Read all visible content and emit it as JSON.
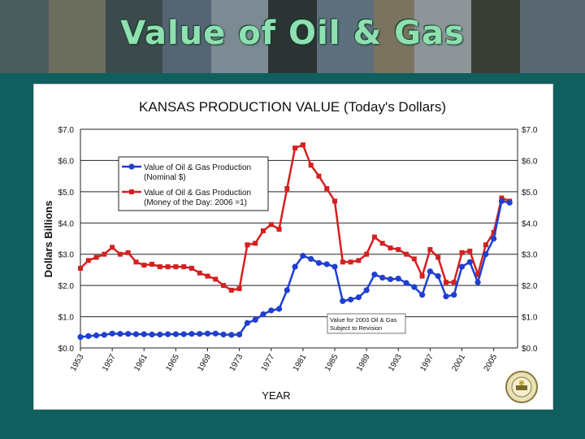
{
  "banner": {
    "title": "Value of Oil & Gas"
  },
  "chart_data": {
    "type": "line",
    "title": "KANSAS PRODUCTION VALUE (Today's Dollars)",
    "xlabel": "YEAR",
    "ylabel": "Dollars Billions",
    "xlim": [
      1953,
      2008
    ],
    "ylim": [
      0,
      7
    ],
    "x_ticks": [
      "1953",
      "1957",
      "1961",
      "1965",
      "1969",
      "1973",
      "1977",
      "1981",
      "1985",
      "1989",
      "1993",
      "1997",
      "2001",
      "2005"
    ],
    "y_ticks": [
      "$0.0",
      "$1.0",
      "$2.0",
      "$3.0",
      "$4.0",
      "$5.0",
      "$6.0",
      "$7.0"
    ],
    "grid": true,
    "legend_position": "upper-left",
    "series": [
      {
        "name": "Value of Oil & Gas Production (Nominal $)",
        "legend_lines": [
          "Value of Oil & Gas Production",
          "(Nominal $)"
        ],
        "color": "#1f3fd0",
        "marker": "circle",
        "x": [
          1953,
          1954,
          1955,
          1956,
          1957,
          1958,
          1959,
          1960,
          1961,
          1962,
          1963,
          1964,
          1965,
          1966,
          1967,
          1968,
          1969,
          1970,
          1971,
          1972,
          1973,
          1974,
          1975,
          1976,
          1977,
          1978,
          1979,
          1980,
          1981,
          1982,
          1983,
          1984,
          1985,
          1986,
          1987,
          1988,
          1989,
          1990,
          1991,
          1992,
          1993,
          1994,
          1995,
          1996,
          1997,
          1998,
          1999,
          2000,
          2001,
          2002,
          2003,
          2004,
          2005,
          2006,
          2007
        ],
        "y": [
          0.35,
          0.38,
          0.4,
          0.42,
          0.46,
          0.45,
          0.45,
          0.44,
          0.44,
          0.43,
          0.43,
          0.44,
          0.44,
          0.44,
          0.45,
          0.45,
          0.46,
          0.46,
          0.43,
          0.42,
          0.43,
          0.8,
          0.9,
          1.08,
          1.2,
          1.25,
          1.85,
          2.6,
          2.95,
          2.85,
          2.72,
          2.68,
          2.6,
          1.5,
          1.55,
          1.62,
          1.85,
          2.35,
          2.25,
          2.2,
          2.22,
          2.08,
          1.95,
          1.7,
          2.45,
          2.3,
          1.65,
          1.7,
          2.6,
          2.75,
          2.1,
          3.0,
          3.5,
          4.7,
          4.65
        ]
      },
      {
        "name": "Value of Oil & Gas Production (Money of the Day: 2006 =1)",
        "legend_lines": [
          "Value of Oil & Gas Production",
          "(Money of the Day: 2006 =1)"
        ],
        "color": "#d42020",
        "marker": "square",
        "x": [
          1953,
          1954,
          1955,
          1956,
          1957,
          1958,
          1959,
          1960,
          1961,
          1962,
          1963,
          1964,
          1965,
          1966,
          1967,
          1968,
          1969,
          1970,
          1971,
          1972,
          1973,
          1974,
          1975,
          1976,
          1977,
          1978,
          1979,
          1980,
          1981,
          1982,
          1983,
          1984,
          1985,
          1986,
          1987,
          1988,
          1989,
          1990,
          1991,
          1992,
          1993,
          1994,
          1995,
          1996,
          1997,
          1998,
          1999,
          2000,
          2001,
          2002,
          2003,
          2004,
          2005,
          2006,
          2007
        ],
        "y": [
          2.55,
          2.8,
          2.9,
          3.0,
          3.22,
          3.0,
          3.05,
          2.75,
          2.65,
          2.68,
          2.6,
          2.6,
          2.6,
          2.6,
          2.55,
          2.4,
          2.3,
          2.2,
          2.0,
          1.85,
          1.9,
          3.3,
          3.35,
          3.75,
          3.95,
          3.8,
          5.1,
          6.4,
          6.5,
          5.85,
          5.5,
          5.1,
          4.7,
          2.75,
          2.75,
          2.8,
          3.0,
          3.55,
          3.35,
          3.2,
          3.15,
          3.0,
          2.85,
          2.3,
          3.15,
          2.9,
          2.1,
          2.1,
          3.05,
          3.1,
          2.35,
          3.3,
          3.7,
          4.8,
          4.7
        ]
      }
    ],
    "annotation": [
      "Value for 2003 Oil & Gas",
      "Subject to Revision"
    ]
  }
}
